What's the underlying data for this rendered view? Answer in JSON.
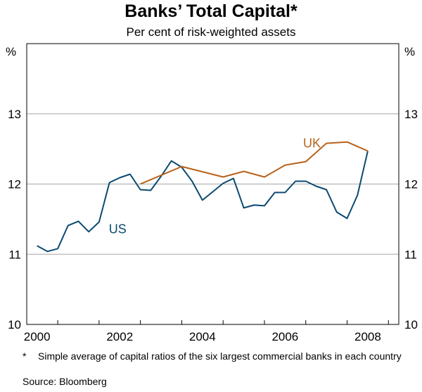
{
  "chart_data": {
    "type": "line",
    "title": "Banks’ Total Capital*",
    "subtitle": "Per cent of risk-weighted assets",
    "y_unit_left": "%",
    "y_unit_right": "%",
    "ylim": [
      10,
      14
    ],
    "yticks": [
      10,
      11,
      12,
      13
    ],
    "xlim": [
      1999.75,
      2008.75
    ],
    "xticks": [
      2000,
      2002,
      2004,
      2006,
      2008
    ],
    "grid": true,
    "footnote_marker": "*",
    "footnote": "Simple average of capital ratios of the six largest commercial banks in each country",
    "source": "Source: Bloomberg",
    "series": [
      {
        "name": "US",
        "color": "#0b4a72",
        "x": [
          2000.0,
          2000.25,
          2000.5,
          2000.75,
          2001.0,
          2001.25,
          2001.5,
          2001.75,
          2002.0,
          2002.25,
          2002.5,
          2002.75,
          2003.0,
          2003.25,
          2003.5,
          2003.75,
          2004.0,
          2004.25,
          2004.5,
          2004.75,
          2005.0,
          2005.25,
          2005.5,
          2005.75,
          2006.0,
          2006.25,
          2006.5,
          2006.75,
          2007.0,
          2007.25,
          2007.5,
          2007.75,
          2008.0
        ],
        "values": [
          11.12,
          11.04,
          11.08,
          11.41,
          11.47,
          11.32,
          11.46,
          12.02,
          12.09,
          12.14,
          11.92,
          11.91,
          12.11,
          12.33,
          12.24,
          12.04,
          11.77,
          11.89,
          12.01,
          12.08,
          11.66,
          11.7,
          11.69,
          11.88,
          11.88,
          12.04,
          12.04,
          11.97,
          11.92,
          11.6,
          11.51,
          11.84,
          12.47
        ]
      },
      {
        "name": "UK",
        "color": "#b8621b",
        "x": [
          2002.5,
          2003.5,
          2004.5,
          2005.0,
          2005.5,
          2006.0,
          2006.5,
          2007.0,
          2007.5,
          2008.0
        ],
        "values": [
          12.0,
          12.25,
          12.1,
          12.18,
          12.1,
          12.27,
          12.32,
          12.58,
          12.6,
          12.47
        ]
      }
    ]
  }
}
